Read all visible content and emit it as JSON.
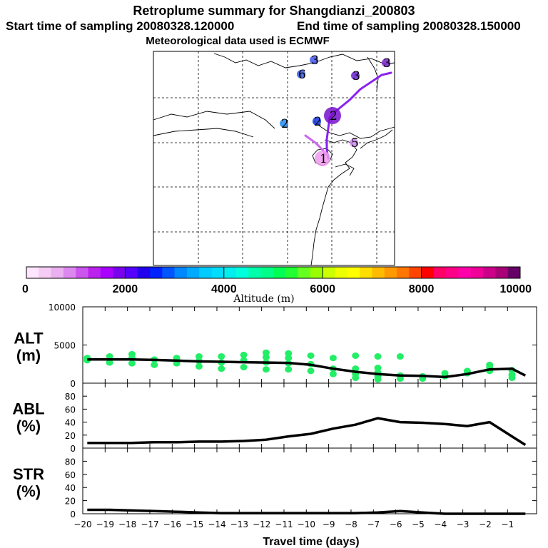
{
  "title": {
    "line1": "Retroplume summary for Shangdianzi_200803",
    "line2a": "Start time of sampling 20080328.120000",
    "line2b": "End time of sampling 20080328.150000",
    "line3": "Meteorological data used is ECMWF"
  },
  "map": {
    "labels": [
      "3",
      "6",
      "3",
      "3",
      "2",
      "2",
      "2",
      "5",
      "1"
    ],
    "clusters": [
      {
        "label": "3",
        "color": "#4455ee"
      },
      {
        "label": "6",
        "color": "#3355dd"
      },
      {
        "label": "3",
        "color": "#6622cc"
      },
      {
        "label": "3",
        "color": "#7722cc"
      },
      {
        "label": "2",
        "color": "#2288ee"
      },
      {
        "label": "2",
        "color": "#1133dd"
      },
      {
        "label": "2",
        "color": "#7711cc"
      },
      {
        "label": "5",
        "color": "#cc88ee"
      },
      {
        "label": "1",
        "color": "#ee99ee"
      }
    ]
  },
  "colorbar": {
    "xlabel": "Altitude (m)",
    "ticks": [
      "0",
      "2000",
      "4000",
      "6000",
      "8000",
      "10000"
    ],
    "colors": [
      "#ffe6ff",
      "#f4ccf4",
      "#eab0f0",
      "#dd88ee",
      "#cc55ee",
      "#bb22ee",
      "#aa00ff",
      "#7a00ee",
      "#5500ff",
      "#2200ee",
      "#0022ff",
      "#0055ff",
      "#0088ff",
      "#00aaff",
      "#00ccff",
      "#00ddff",
      "#00eeee",
      "#00ffdd",
      "#00ffaa",
      "#00ff88",
      "#00ff55",
      "#22ff33",
      "#66ff22",
      "#99ff00",
      "#ccff00",
      "#eeff00",
      "#ffff00",
      "#ffdd00",
      "#ffbb00",
      "#ff9900",
      "#ff7700",
      "#ff4400",
      "#ff0000",
      "#ff0066",
      "#ff0088",
      "#ff00aa",
      "#ee0099",
      "#cc0088",
      "#aa0077",
      "#660066"
    ]
  },
  "chart_data": [
    {
      "type": "line",
      "ylabel_main": "ALT",
      "ylabel_unit": "(m)",
      "yticks": [
        "0",
        "5000",
        "10000"
      ],
      "ylim": [
        0,
        10000
      ],
      "x": [
        -19.8,
        -18.8,
        -17.8,
        -16.8,
        -15.8,
        -14.8,
        -13.8,
        -12.8,
        -11.8,
        -10.8,
        -9.8,
        -8.8,
        -7.8,
        -6.8,
        -5.8,
        -4.8,
        -3.8,
        -2.8,
        -1.8,
        -0.8,
        -0.2
      ],
      "values": [
        3100,
        3100,
        3100,
        3050,
        2950,
        2850,
        2800,
        2750,
        2700,
        2650,
        2400,
        1900,
        1500,
        1200,
        1000,
        950,
        800,
        1200,
        1800,
        1900,
        1000
      ],
      "scatter": [
        {
          "x": -19.8,
          "y": 3000
        },
        {
          "x": -19.8,
          "y": 3300
        },
        {
          "x": -18.8,
          "y": 2700
        },
        {
          "x": -18.8,
          "y": 3500
        },
        {
          "x": -17.8,
          "y": 2600
        },
        {
          "x": -17.8,
          "y": 3300
        },
        {
          "x": -17.8,
          "y": 3800
        },
        {
          "x": -16.8,
          "y": 2400
        },
        {
          "x": -16.8,
          "y": 3100
        },
        {
          "x": -15.8,
          "y": 2600
        },
        {
          "x": -15.8,
          "y": 3300
        },
        {
          "x": -14.8,
          "y": 2200
        },
        {
          "x": -14.8,
          "y": 2900
        },
        {
          "x": -14.8,
          "y": 3500
        },
        {
          "x": -13.8,
          "y": 1900
        },
        {
          "x": -13.8,
          "y": 2700
        },
        {
          "x": -13.8,
          "y": 3500
        },
        {
          "x": -12.8,
          "y": 2100
        },
        {
          "x": -12.8,
          "y": 3000
        },
        {
          "x": -12.8,
          "y": 3700
        },
        {
          "x": -11.8,
          "y": 1800
        },
        {
          "x": -11.8,
          "y": 2700
        },
        {
          "x": -11.8,
          "y": 3400
        },
        {
          "x": -11.8,
          "y": 4000
        },
        {
          "x": -10.8,
          "y": 1800
        },
        {
          "x": -10.8,
          "y": 2600
        },
        {
          "x": -10.8,
          "y": 3300
        },
        {
          "x": -10.8,
          "y": 3900
        },
        {
          "x": -9.8,
          "y": 1600
        },
        {
          "x": -9.8,
          "y": 2500
        },
        {
          "x": -9.8,
          "y": 3600
        },
        {
          "x": -8.8,
          "y": 1200
        },
        {
          "x": -8.8,
          "y": 1900
        },
        {
          "x": -8.8,
          "y": 3300
        },
        {
          "x": -7.8,
          "y": 700
        },
        {
          "x": -7.8,
          "y": 1200
        },
        {
          "x": -7.8,
          "y": 1900
        },
        {
          "x": -7.8,
          "y": 3600
        },
        {
          "x": -6.8,
          "y": 500
        },
        {
          "x": -6.8,
          "y": 900
        },
        {
          "x": -6.8,
          "y": 1400
        },
        {
          "x": -6.8,
          "y": 2000
        },
        {
          "x": -6.8,
          "y": 3500
        },
        {
          "x": -5.8,
          "y": 600
        },
        {
          "x": -5.8,
          "y": 1000
        },
        {
          "x": -5.8,
          "y": 3500
        },
        {
          "x": -4.8,
          "y": 600
        },
        {
          "x": -4.8,
          "y": 900
        },
        {
          "x": -3.8,
          "y": 900
        },
        {
          "x": -3.8,
          "y": 1300
        },
        {
          "x": -2.8,
          "y": 1300
        },
        {
          "x": -2.8,
          "y": 1600
        },
        {
          "x": -1.8,
          "y": 1600
        },
        {
          "x": -1.8,
          "y": 2000
        },
        {
          "x": -1.8,
          "y": 2400
        },
        {
          "x": -0.8,
          "y": 700
        },
        {
          "x": -0.8,
          "y": 1100
        },
        {
          "x": -0.8,
          "y": 1700
        }
      ]
    },
    {
      "type": "line",
      "ylabel_main": "ABL",
      "ylabel_unit": "(%)",
      "yticks": [
        "0",
        "20",
        "40",
        "60",
        "80"
      ],
      "ylim": [
        0,
        100
      ],
      "x": [
        -19.8,
        -18.8,
        -17.8,
        -16.8,
        -15.8,
        -14.8,
        -13.8,
        -12.8,
        -11.8,
        -10.8,
        -9.8,
        -8.8,
        -7.8,
        -6.8,
        -5.8,
        -4.8,
        -3.8,
        -2.8,
        -1.8,
        -0.8,
        -0.2
      ],
      "values": [
        8,
        8,
        8,
        9,
        9,
        10,
        10,
        11,
        13,
        18,
        22,
        30,
        36,
        46,
        40,
        39,
        37,
        34,
        40,
        18,
        5
      ]
    },
    {
      "type": "line",
      "ylabel_main": "STR",
      "ylabel_unit": "(%)",
      "yticks": [
        "0",
        "20",
        "40",
        "60",
        "80"
      ],
      "ylim": [
        0,
        100
      ],
      "x": [
        -19.8,
        -18.8,
        -17.8,
        -16.8,
        -15.8,
        -14.8,
        -13.8,
        -12.8,
        -11.8,
        -10.8,
        -9.8,
        -8.8,
        -7.8,
        -6.8,
        -5.8,
        -4.8,
        -3.8,
        -2.8,
        -1.8,
        -0.8,
        -0.2
      ],
      "values": [
        6,
        6,
        5,
        4,
        3,
        2,
        1,
        1,
        1,
        1,
        1,
        1,
        1,
        2,
        4,
        2,
        0,
        0,
        0,
        0,
        0
      ],
      "xticks": [
        "−20",
        "−19",
        "−18",
        "−17",
        "−16",
        "−15",
        "−14",
        "−13",
        "−12",
        "−11",
        "−10",
        "−9",
        "−8",
        "−7",
        "−6",
        "−5",
        "−4",
        "−3",
        "−2",
        "−1"
      ],
      "xlabel": "Travel time (days)"
    }
  ]
}
